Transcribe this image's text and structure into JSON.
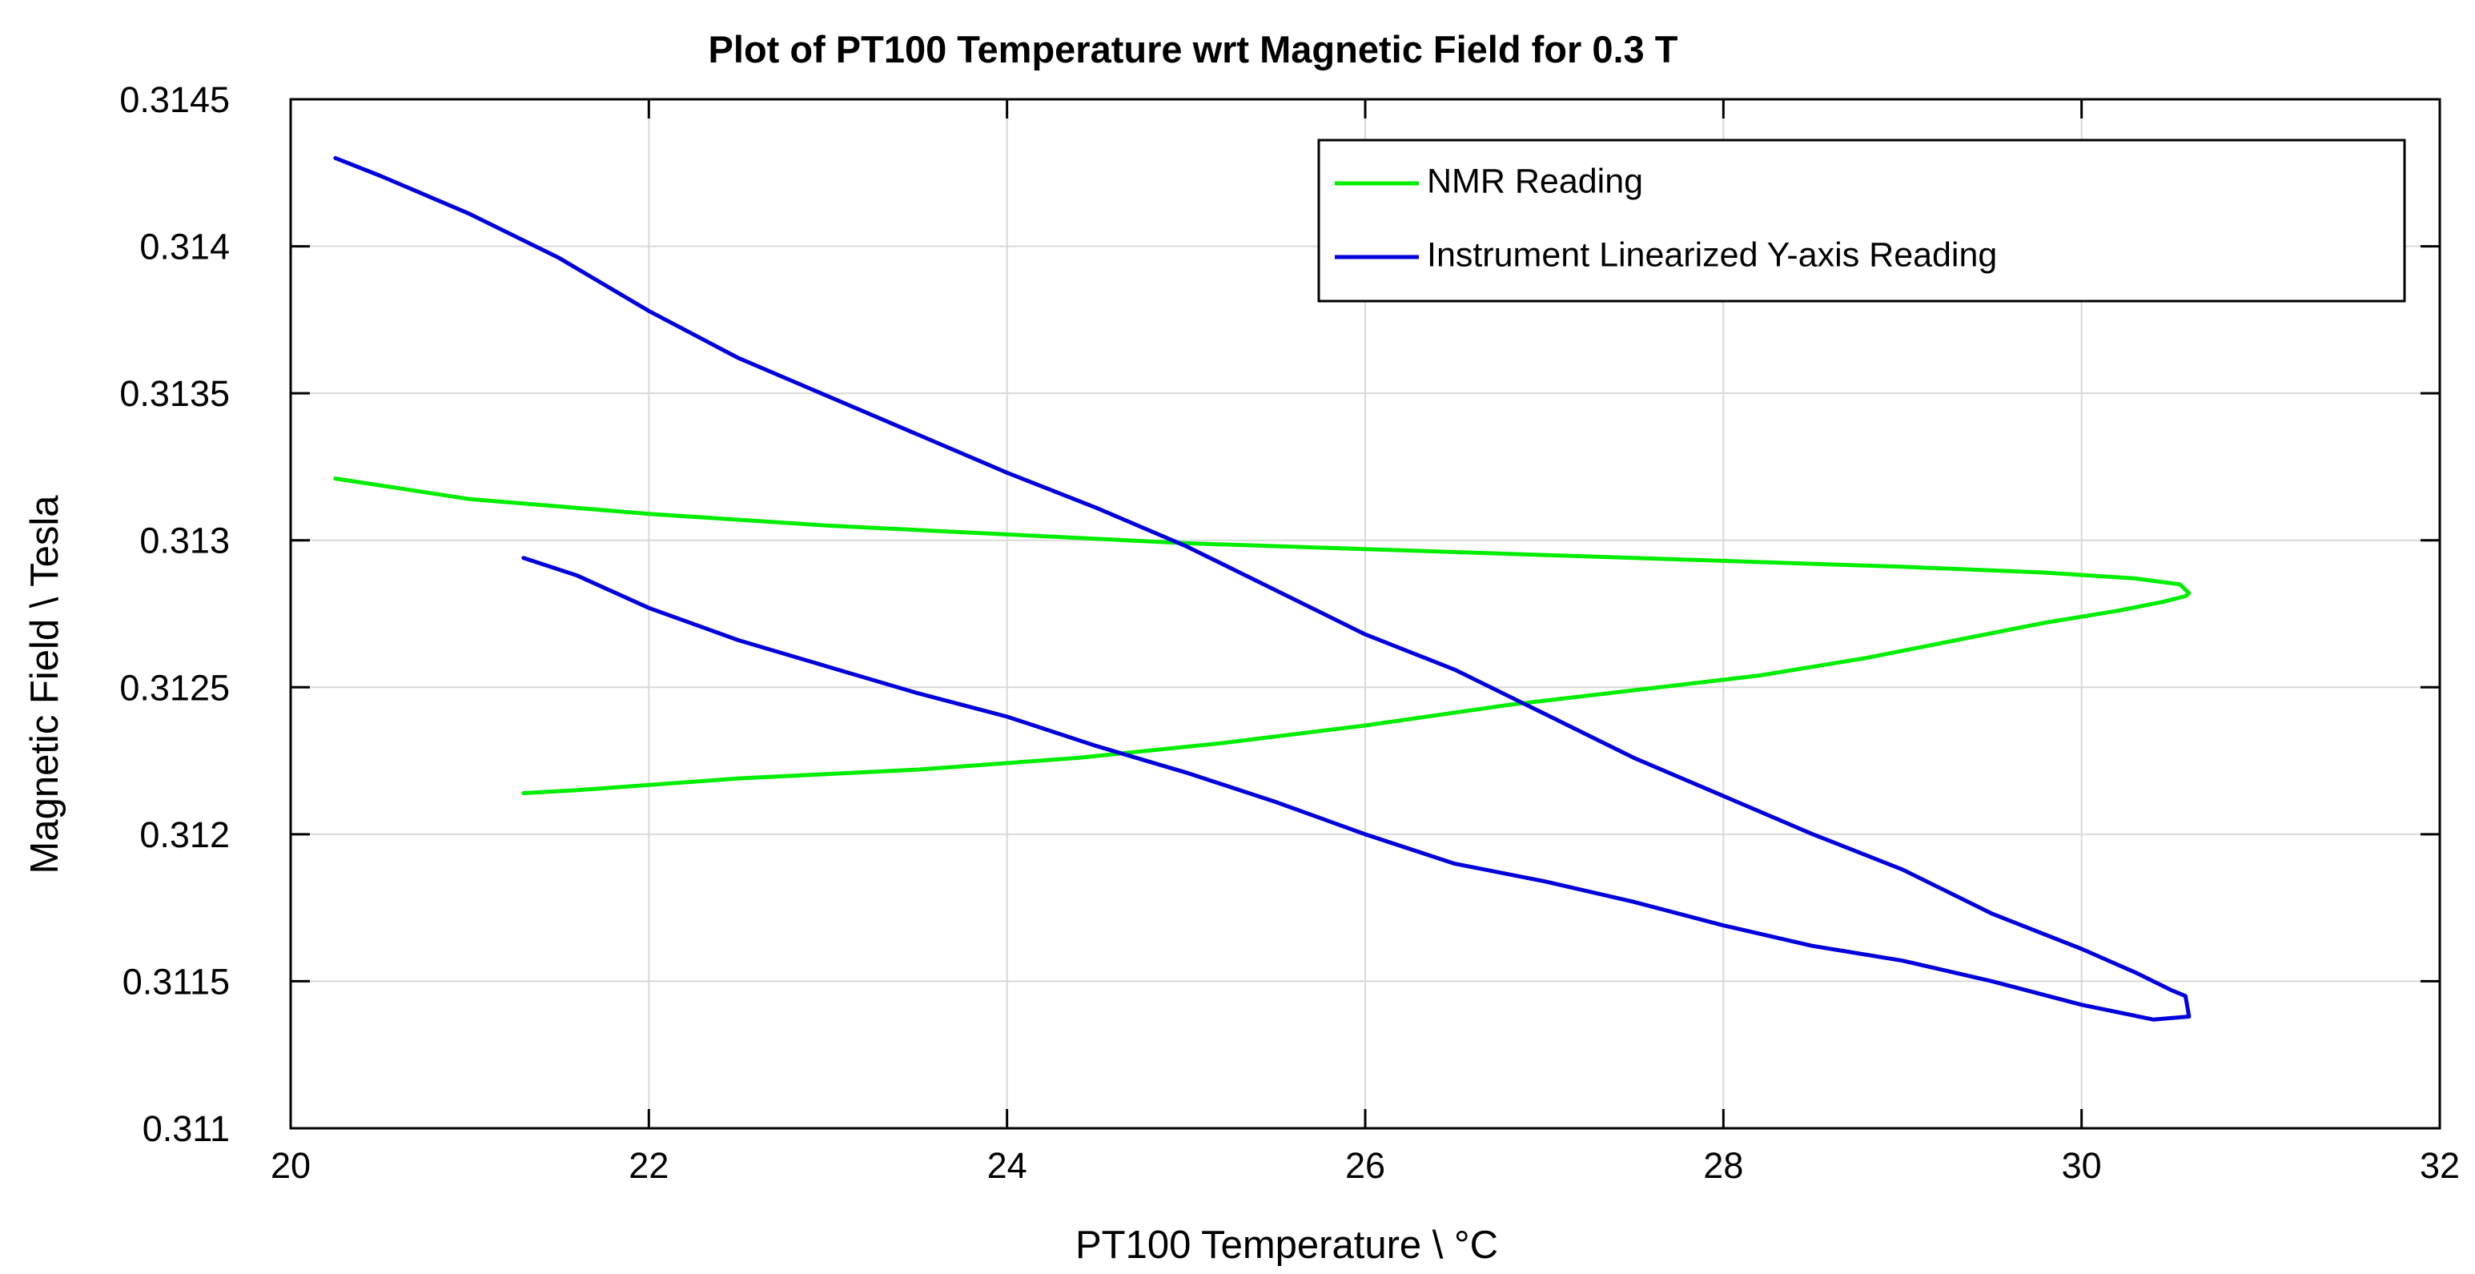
{
  "chart_data": {
    "type": "line",
    "title": "Plot of PT100 Temperature wrt Magnetic Field for 0.3 T",
    "xlabel": "PT100 Temperature \\ °C",
    "ylabel": "Magnetic Field \\ Tesla",
    "xlim": [
      20,
      32
    ],
    "ylim": [
      0.311,
      0.3145
    ],
    "xticks": [
      20,
      22,
      24,
      26,
      28,
      30,
      32
    ],
    "xtick_labels": [
      "20",
      "22",
      "24",
      "26",
      "28",
      "30",
      "32"
    ],
    "yticks": [
      0.311,
      0.3115,
      0.312,
      0.3125,
      0.313,
      0.3135,
      0.314,
      0.3145
    ],
    "ytick_labels": [
      "0.311",
      "0.3115",
      "0.312",
      "0.3125",
      "0.313",
      "0.3135",
      "0.314",
      "0.3145"
    ],
    "grid": true,
    "legend_position": "top-right",
    "series": [
      {
        "name": "NMR Reading",
        "color": "#00ee00",
        "x": [
          20.25,
          21.0,
          22.0,
          23.0,
          24.0,
          25.0,
          26.0,
          27.0,
          28.0,
          29.0,
          29.8,
          30.3,
          30.55,
          30.6,
          30.58,
          30.45,
          30.2,
          29.8,
          29.3,
          28.8,
          28.2,
          27.5,
          26.8,
          26.0,
          25.2,
          24.4,
          23.5,
          22.5,
          21.6,
          21.3
        ],
        "y": [
          0.31321,
          0.31314,
          0.31309,
          0.31305,
          0.31302,
          0.31299,
          0.31297,
          0.31295,
          0.31293,
          0.31291,
          0.31289,
          0.31287,
          0.31285,
          0.31282,
          0.31281,
          0.31279,
          0.31276,
          0.31272,
          0.31266,
          0.3126,
          0.31254,
          0.31249,
          0.31244,
          0.31237,
          0.31231,
          0.31226,
          0.31222,
          0.31219,
          0.31215,
          0.31214
        ]
      },
      {
        "name": "Instrument Linearized Y-axis Reading",
        "color": "#0000dd",
        "x": [
          20.25,
          20.5,
          21.0,
          21.5,
          22.0,
          22.5,
          23.0,
          23.5,
          24.0,
          24.5,
          25.0,
          25.5,
          26.0,
          26.5,
          27.0,
          27.5,
          28.0,
          28.5,
          29.0,
          29.5,
          30.0,
          30.3,
          30.5,
          30.58,
          30.6,
          30.4,
          30.0,
          29.5,
          29.0,
          28.5,
          28.0,
          27.5,
          27.0,
          26.5,
          26.0,
          25.5,
          25.0,
          24.5,
          24.0,
          23.5,
          23.0,
          22.5,
          22.0,
          21.6,
          21.3
        ],
        "y": [
          0.3143,
          0.31424,
          0.31411,
          0.31396,
          0.31378,
          0.31362,
          0.31349,
          0.31336,
          0.31323,
          0.31311,
          0.31298,
          0.31283,
          0.31268,
          0.31256,
          0.31241,
          0.31226,
          0.31213,
          0.312,
          0.31188,
          0.31173,
          0.31161,
          0.31153,
          0.31147,
          0.31145,
          0.31138,
          0.31137,
          0.31142,
          0.3115,
          0.31157,
          0.31162,
          0.31169,
          0.31177,
          0.31184,
          0.3119,
          0.312,
          0.31211,
          0.31221,
          0.3123,
          0.3124,
          0.31248,
          0.31257,
          0.31266,
          0.31277,
          0.31288,
          0.31294
        ]
      }
    ]
  }
}
